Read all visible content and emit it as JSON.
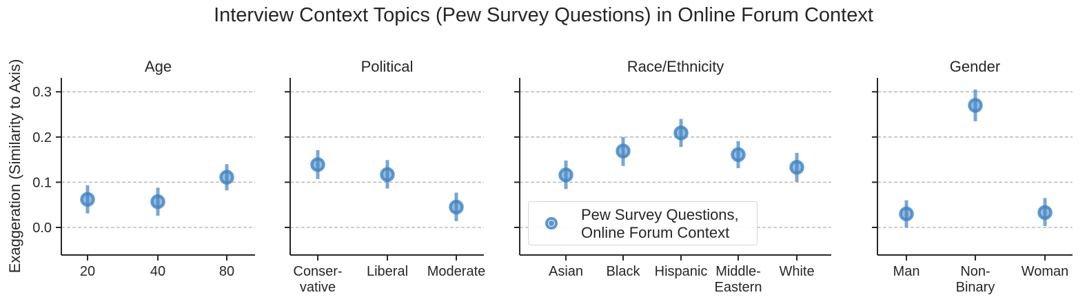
{
  "title": "Interview Context Topics (Pew Survey Questions) in Online Forum Context",
  "ylabel": "Exaggeration (Similarity to Axis)",
  "legend": {
    "line1": "Pew Survey Questions,",
    "line2": "Online Forum Context",
    "color": "#3f83c2"
  },
  "colors": {
    "marker": "#3f83c2",
    "grid": "#b0b0b0",
    "axis": "#262626"
  },
  "chart_data": [
    {
      "type": "scatter",
      "title": "Age",
      "categories": [
        [
          "20"
        ],
        [
          "40"
        ],
        [
          "80"
        ]
      ],
      "values": [
        0.062,
        0.057,
        0.111
      ],
      "error_low": [
        0.031,
        0.026,
        0.082
      ],
      "error_high": [
        0.093,
        0.088,
        0.14
      ],
      "ylim": [
        -0.06,
        0.33
      ],
      "yticks": [
        "0.0",
        "0.1",
        "0.2",
        "0.3"
      ],
      "ytick_values": [
        0.0,
        0.1,
        0.2,
        0.3
      ],
      "grid": "dashed horizontal"
    },
    {
      "type": "scatter",
      "title": "Political",
      "categories": [
        [
          "Conser-",
          "vative"
        ],
        [
          "Liberal"
        ],
        [
          "Moderate"
        ]
      ],
      "values": [
        0.139,
        0.117,
        0.045
      ],
      "error_low": [
        0.107,
        0.086,
        0.014
      ],
      "error_high": [
        0.171,
        0.149,
        0.077
      ],
      "ylim": [
        -0.06,
        0.33
      ],
      "grid": "dashed horizontal"
    },
    {
      "type": "scatter",
      "title": "Race/Ethnicity",
      "categories": [
        [
          "Asian"
        ],
        [
          "Black"
        ],
        [
          "Hispanic"
        ],
        [
          "Middle-",
          "Eastern"
        ],
        [
          "White"
        ]
      ],
      "values": [
        0.116,
        0.169,
        0.209,
        0.161,
        0.133
      ],
      "error_low": [
        0.085,
        0.136,
        0.178,
        0.131,
        0.101
      ],
      "error_high": [
        0.148,
        0.2,
        0.24,
        0.191,
        0.165
      ],
      "ylim": [
        -0.06,
        0.33
      ],
      "grid": "dashed horizontal",
      "legend_position": "lower-left"
    },
    {
      "type": "scatter",
      "title": "Gender",
      "categories": [
        [
          "Man"
        ],
        [
          "Non-",
          "Binary"
        ],
        [
          "Woman"
        ]
      ],
      "values": [
        0.03,
        0.27,
        0.033
      ],
      "error_low": [
        0.0,
        0.235,
        0.003
      ],
      "error_high": [
        0.06,
        0.305,
        0.065
      ],
      "ylim": [
        -0.06,
        0.33
      ],
      "grid": "dashed horizontal"
    }
  ]
}
